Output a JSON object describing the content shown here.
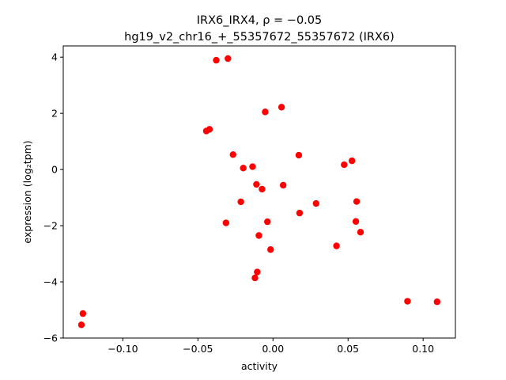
{
  "chart_data": {
    "type": "scatter",
    "title_line1": "IRX6_IRX4, ρ = −0.05",
    "title_line2": "hg19_v2_chr16_+_55357672_55357672 (IRX6)",
    "xlabel": "activity",
    "ylabel": "expression (log₂tpm)",
    "xlim": [
      -0.1397,
      0.1215
    ],
    "ylim": [
      -6,
      4.4
    ],
    "x_ticks": [
      -0.1,
      -0.05,
      0.0,
      0.05,
      0.1
    ],
    "x_tick_labels": [
      "−0.10",
      "−0.05",
      "0.00",
      "0.05",
      "0.10"
    ],
    "y_ticks": [
      -6,
      -4,
      -2,
      0,
      2,
      4
    ],
    "y_tick_labels": [
      "−6",
      "−4",
      "−2",
      "0",
      "2",
      "4"
    ],
    "marker_color": "#ff0000",
    "grid": false,
    "points": [
      {
        "x": -0.1266,
        "y": -5.13
      },
      {
        "x": -0.1276,
        "y": -5.53
      },
      {
        "x": -0.0378,
        "y": 3.89
      },
      {
        "x": -0.03,
        "y": 3.95
      },
      {
        "x": -0.0444,
        "y": 1.37
      },
      {
        "x": -0.0423,
        "y": 1.43
      },
      {
        "x": -0.0266,
        "y": 0.53
      },
      {
        "x": -0.0198,
        "y": 0.05
      },
      {
        "x": -0.0136,
        "y": 0.1
      },
      {
        "x": -0.011,
        "y": -0.53
      },
      {
        "x": -0.0073,
        "y": -0.7
      },
      {
        "x": -0.0214,
        "y": -1.15
      },
      {
        "x": -0.0313,
        "y": -1.9
      },
      {
        "x": -0.0037,
        "y": -1.86
      },
      {
        "x": -0.0094,
        "y": -2.35
      },
      {
        "x": -0.0016,
        "y": -2.85
      },
      {
        "x": -0.0105,
        "y": -3.65
      },
      {
        "x": -0.012,
        "y": -3.86
      },
      {
        "x": -0.0052,
        "y": 2.05
      },
      {
        "x": 0.0057,
        "y": 2.22
      },
      {
        "x": 0.0068,
        "y": -0.56
      },
      {
        "x": 0.0172,
        "y": 0.51
      },
      {
        "x": 0.0177,
        "y": -1.55
      },
      {
        "x": 0.0287,
        "y": -1.21
      },
      {
        "x": 0.0423,
        "y": -2.72
      },
      {
        "x": 0.0474,
        "y": 0.17
      },
      {
        "x": 0.0526,
        "y": 0.31
      },
      {
        "x": 0.0552,
        "y": -1.85
      },
      {
        "x": 0.0557,
        "y": -1.14
      },
      {
        "x": 0.0583,
        "y": -2.23
      },
      {
        "x": 0.0896,
        "y": -4.69
      },
      {
        "x": 0.1093,
        "y": -4.71
      }
    ]
  }
}
